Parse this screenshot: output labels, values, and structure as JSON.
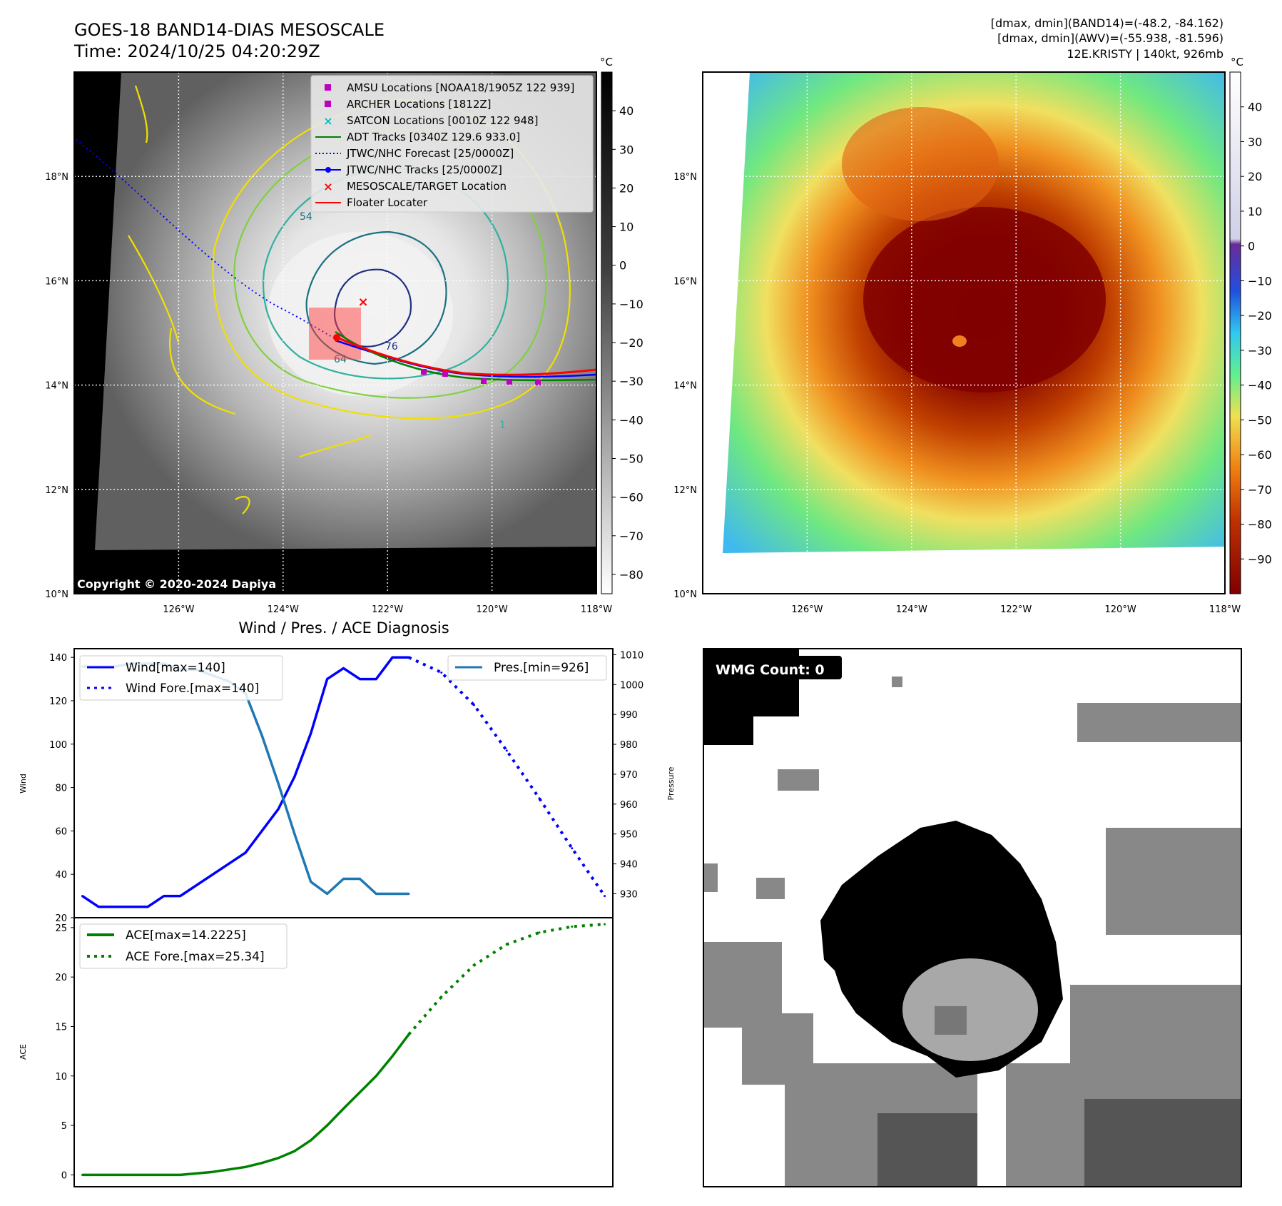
{
  "header": {
    "title_line1": "GOES-18 BAND14-DIAS MESOSCALE",
    "title_line2": "Time: 2024/10/25 04:20:29Z",
    "stats_line1": "[dmax, dmin](BAND14)=(-48.2, -84.162)",
    "stats_line2": "[dmax, dmin](AWV)=(-55.938, -81.596)",
    "stats_line3": "12E.KRISTY | 140kt, 926mb"
  },
  "map_axes": {
    "lat_labels": [
      "18°N",
      "16°N",
      "14°N",
      "12°N",
      "10°N"
    ],
    "lat_values": [
      18,
      16,
      14,
      12,
      10
    ],
    "lon_labels": [
      "126°W",
      "124°W",
      "122°W",
      "120°W",
      "118°W"
    ],
    "lon_values": [
      -126,
      -124,
      -122,
      -120,
      -118
    ],
    "lon_range": [
      -128,
      -118
    ],
    "lat_range": [
      10,
      20
    ]
  },
  "ir_panel": {
    "copyright": "Copyright © 2020-2024 Dapiya",
    "colorbar_unit": "°C",
    "colorbar_ticks": [
      "40",
      "30",
      "20",
      "10",
      "0",
      "−10",
      "−20",
      "−30",
      "−40",
      "−50",
      "−60",
      "−70",
      "−80"
    ],
    "colorbar_values": [
      40,
      30,
      20,
      10,
      0,
      -10,
      -20,
      -30,
      -40,
      -50,
      -60,
      -70,
      -80
    ],
    "colorbar_range": [
      -85,
      50
    ],
    "contour_labels": [
      "54",
      "64",
      "76",
      "1"
    ],
    "legend": [
      {
        "label": "AMSU Locations [NOAA18/1905Z 122 939]",
        "marker": "square",
        "color": "#c000c0"
      },
      {
        "label": "ARCHER Locations [1812Z]",
        "marker": "square",
        "color": "#c000c0"
      },
      {
        "label": "SATCON Locations [0010Z 122 948]",
        "marker": "x",
        "color": "#00c0c0"
      },
      {
        "label": "ADT Tracks [0340Z 129.6 933.0]",
        "marker": "line",
        "color": "#008000"
      },
      {
        "label": "JTWC/NHC Forecast [25/0000Z]",
        "marker": "dotted",
        "color": "#0000ff"
      },
      {
        "label": "JTWC/NHC Tracks [25/0000Z]",
        "marker": "line-dot",
        "color": "#0000ff"
      },
      {
        "label": "MESOSCALE/TARGET Location",
        "marker": "x",
        "color": "#ff0000"
      },
      {
        "label": "Floater Locater",
        "marker": "line",
        "color": "#ff0000"
      }
    ]
  },
  "awv_panel": {
    "colorbar_unit": "°C",
    "colorbar_ticks": [
      "40",
      "30",
      "20",
      "10",
      "0",
      "−10",
      "−20",
      "−30",
      "−40",
      "−50",
      "−60",
      "−70",
      "−80",
      "−90"
    ],
    "colorbar_values": [
      40,
      30,
      20,
      10,
      0,
      -10,
      -20,
      -30,
      -40,
      -50,
      -60,
      -70,
      -80,
      -90
    ],
    "colorbar_range": [
      -100,
      50
    ]
  },
  "wmg_panel": {
    "badge": "WMG Count: 0"
  },
  "chart_data": [
    {
      "type": "line",
      "title": "Wind / Pres. / ACE Diagnosis",
      "ylabel": "Wind",
      "ylabel_right": "Pressure",
      "ylim": [
        20,
        144
      ],
      "ylim_right": [
        922,
        1012
      ],
      "xlim": [
        -0.5,
        32.5
      ],
      "yticks": [
        20,
        40,
        60,
        80,
        100,
        120,
        140
      ],
      "yticks_right": [
        930,
        940,
        950,
        960,
        970,
        980,
        990,
        1000,
        1010
      ],
      "series": [
        {
          "name": "Wind[max=140]",
          "color": "#0000ff",
          "style": "solid",
          "axis": "left",
          "x": [
            0,
            1,
            2,
            3,
            4,
            5,
            6,
            10,
            12,
            13,
            14,
            15,
            16,
            17,
            18,
            19,
            20
          ],
          "values": [
            30,
            25,
            25,
            25,
            25,
            30,
            30,
            50,
            70,
            85,
            105,
            130,
            135,
            130,
            130,
            140,
            140
          ]
        },
        {
          "name": "Wind Fore.[max=140]",
          "color": "#0000ff",
          "style": "dotted",
          "axis": "left",
          "x": [
            20,
            22,
            24,
            26,
            28,
            30,
            32
          ],
          "values": [
            140,
            133,
            118,
            97,
            75,
            52,
            30
          ]
        },
        {
          "name": "Pres.[min=926]",
          "color": "#1f77b4",
          "style": "solid",
          "axis": "right",
          "x": [
            0,
            1,
            2,
            3,
            4,
            5,
            6,
            7,
            8,
            9,
            10,
            11,
            12,
            13,
            14,
            15,
            16,
            17,
            18,
            19,
            20
          ],
          "values": [
            1006,
            1006,
            1006,
            1007,
            1007,
            1007,
            1005,
            1005,
            1003,
            1001,
            997,
            983,
            967,
            950,
            934,
            930,
            935,
            935,
            930,
            930,
            930
          ]
        }
      ]
    },
    {
      "type": "line",
      "ylabel": "ACE",
      "ylim": [
        -1.2,
        26
      ],
      "xlim": [
        -0.5,
        32.5
      ],
      "yticks": [
        0,
        5,
        10,
        15,
        20,
        25
      ],
      "series": [
        {
          "name": "ACE[max=14.2225]",
          "color": "#008000",
          "style": "solid",
          "x": [
            0,
            2,
            4,
            6,
            8,
            10,
            11,
            12,
            13,
            14,
            15,
            16,
            18,
            19,
            20
          ],
          "values": [
            0,
            0,
            0,
            0,
            0.3,
            0.8,
            1.2,
            1.7,
            2.4,
            3.5,
            5,
            6.7,
            10,
            12,
            14.2
          ]
        },
        {
          "name": "ACE Fore.[max=25.34]",
          "color": "#008000",
          "style": "dotted",
          "x": [
            20,
            22,
            24,
            26,
            28,
            30,
            32
          ],
          "values": [
            14.2,
            18,
            21.2,
            23.3,
            24.5,
            25.1,
            25.34
          ]
        }
      ]
    }
  ]
}
